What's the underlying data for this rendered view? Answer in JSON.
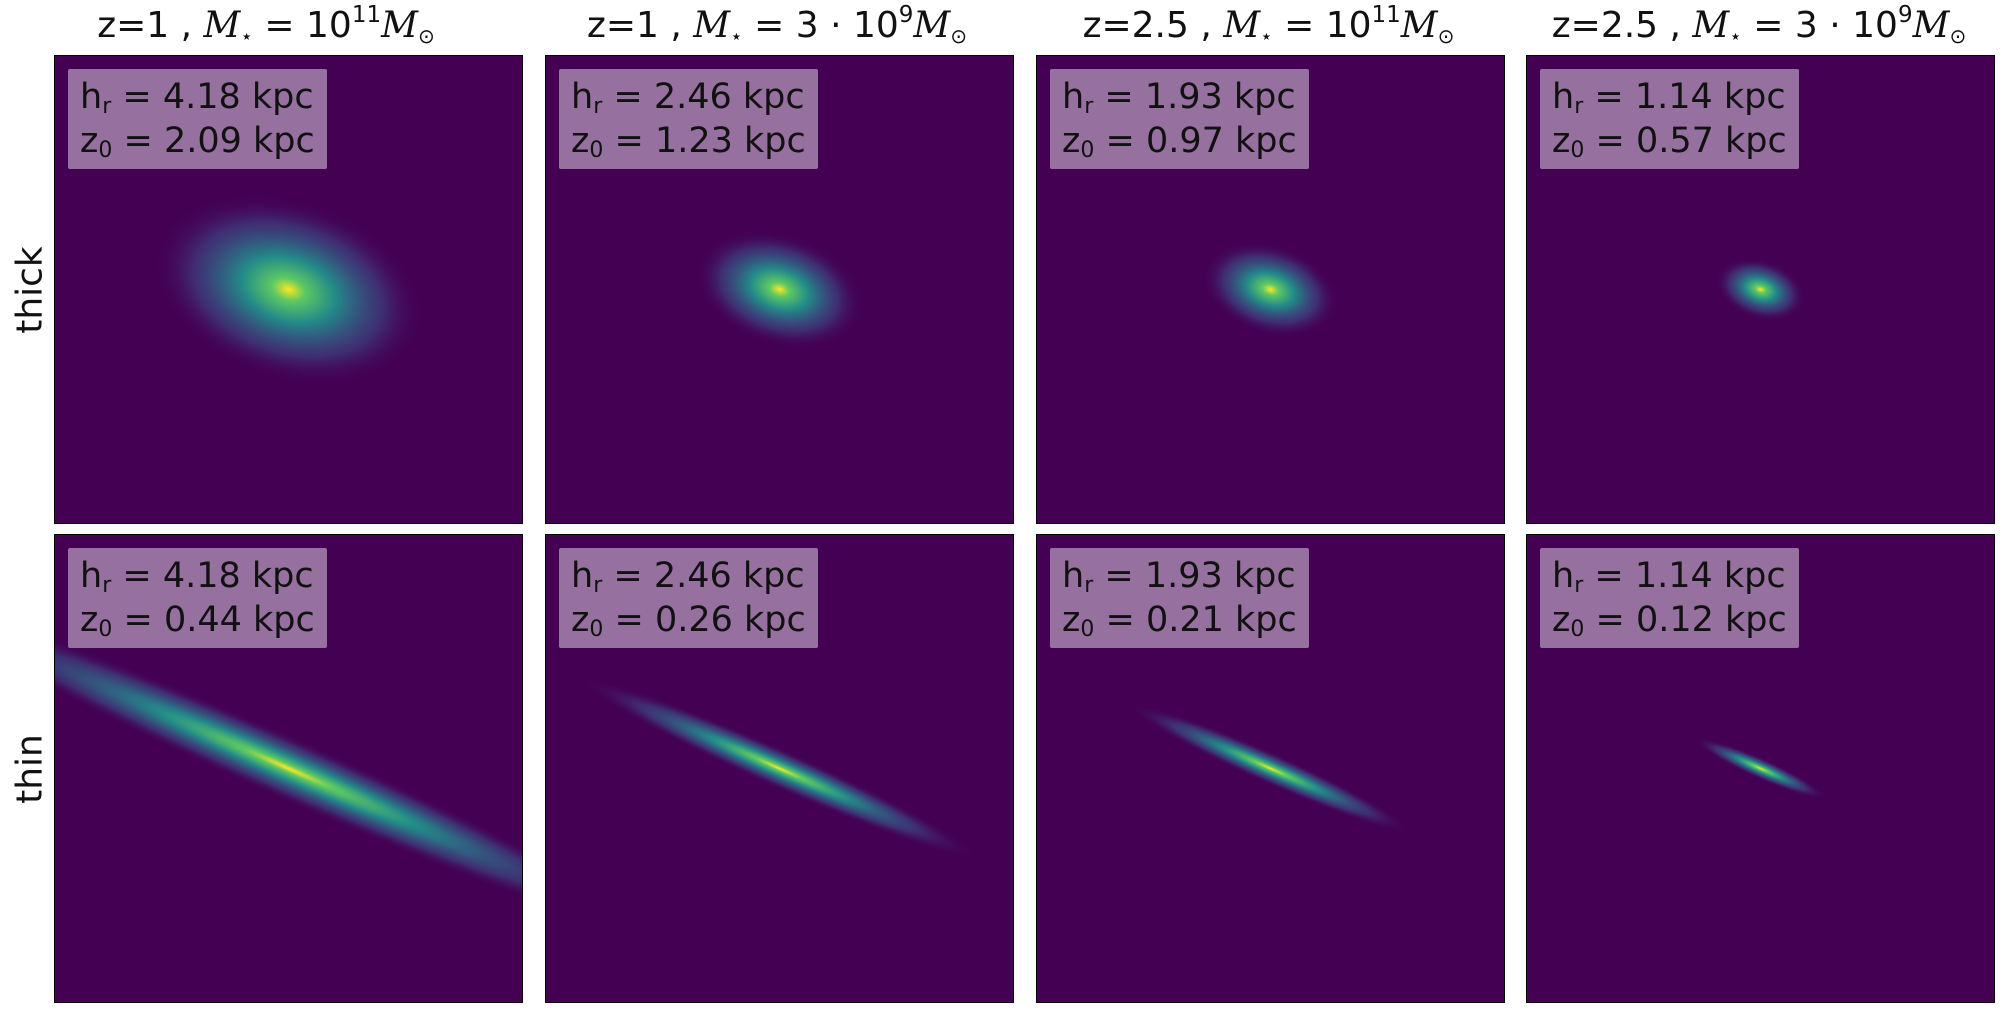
{
  "columns": [
    {
      "z": "z=1",
      "mass_coef": "",
      "mass_exp": "11"
    },
    {
      "z": "z=1",
      "mass_coef": "3 · ",
      "mass_exp": "9"
    },
    {
      "z": "z=2.5",
      "mass_coef": "",
      "mass_exp": "11"
    },
    {
      "z": "z=2.5",
      "mass_coef": "3 · ",
      "mass_exp": "9"
    }
  ],
  "title_parts": {
    "sep": " , ",
    "mass_symbol": "M",
    "star": "⋆",
    "equals": " = ",
    "base": "10",
    "solar_symbol": "M",
    "solar_sub": "⊙"
  },
  "rows": [
    {
      "label": "thick",
      "panels": [
        {
          "hr": "4.18 kpc",
          "z0": "2.09 kpc",
          "size": 1.0,
          "elong": 1.55,
          "angle": 18
        },
        {
          "hr": "2.46 kpc",
          "z0": "1.23 kpc",
          "size": 0.62,
          "elong": 1.55,
          "angle": 18
        },
        {
          "hr": "1.93 kpc",
          "z0": "0.97 kpc",
          "size": 0.5,
          "elong": 1.55,
          "angle": 18
        },
        {
          "hr": "1.14 kpc",
          "z0": "0.57 kpc",
          "size": 0.33,
          "elong": 1.55,
          "angle": 18
        }
      ]
    },
    {
      "label": "thin",
      "panels": [
        {
          "hr": "4.18 kpc",
          "z0": "0.44 kpc",
          "size": 1.0,
          "elong": 6.0,
          "angle": 24
        },
        {
          "hr": "2.46 kpc",
          "z0": "0.26 kpc",
          "size": 0.62,
          "elong": 5.2,
          "angle": 24
        },
        {
          "hr": "1.93 kpc",
          "z0": "0.21 kpc",
          "size": 0.5,
          "elong": 4.6,
          "angle": 24
        },
        {
          "hr": "1.14 kpc",
          "z0": "0.12 kpc",
          "size": 0.33,
          "elong": 3.2,
          "angle": 24
        }
      ]
    }
  ],
  "labels": {
    "hr_symbol": "h",
    "hr_sub": "r",
    "z0_symbol": "z",
    "z0_sub": "0",
    "eq": " = "
  },
  "colors": {
    "background": "#440154",
    "mid": "#21918c",
    "high": "#5ec962",
    "peak": "#fde725"
  }
}
